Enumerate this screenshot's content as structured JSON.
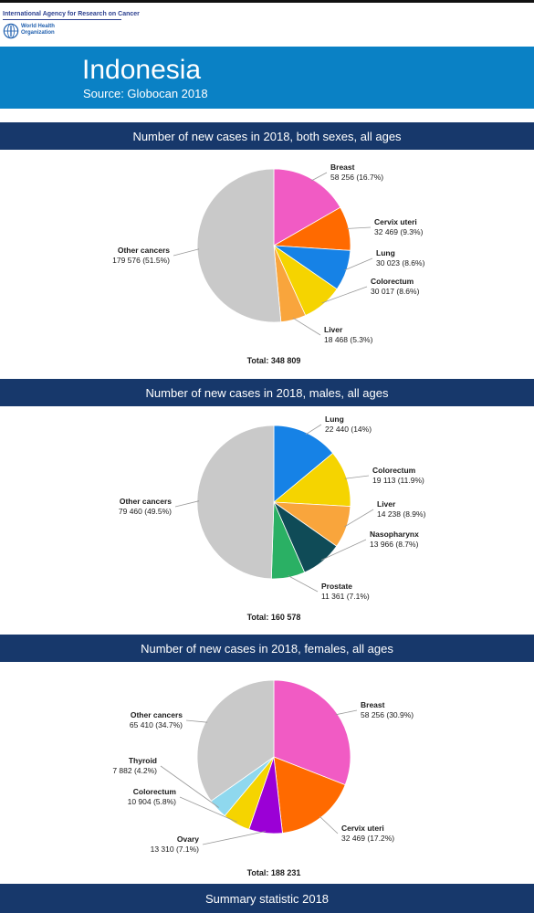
{
  "agency": "International Agency for Research on Cancer",
  "who": {
    "line1": "World Health",
    "line2": "Organization"
  },
  "banner": {
    "country": "Indonesia",
    "source": "Source: Globocan 2018"
  },
  "summary_header": "Summary statistic 2018",
  "colors": {
    "banner": "#0a81c5",
    "section_header": "#17386b"
  },
  "chart_data": [
    {
      "type": "pie",
      "title": "Number of new cases in 2018, both sexes, all ages",
      "total_label": "Total: 348 809",
      "slices": [
        {
          "name": "Breast",
          "value": 58256,
          "value_label": "58 256 (16.7%)",
          "color": "#f15bc4"
        },
        {
          "name": "Cervix uteri",
          "value": 32469,
          "value_label": "32 469 (9.3%)",
          "color": "#ff6a00"
        },
        {
          "name": "Lung",
          "value": 30023,
          "value_label": "30 023 (8.6%)",
          "color": "#1682e6"
        },
        {
          "name": "Colorectum",
          "value": 30017,
          "value_label": "30 017 (8.6%)",
          "color": "#f5d400"
        },
        {
          "name": "Liver",
          "value": 18468,
          "value_label": "18 468 (5.3%)",
          "color": "#f9a53c"
        },
        {
          "name": "Other cancers",
          "value": 179576,
          "value_label": "179 576 (51.5%)",
          "color": "#c9c9c9"
        }
      ]
    },
    {
      "type": "pie",
      "title": "Number of new cases in 2018, males, all ages",
      "total_label": "Total: 160 578",
      "slices": [
        {
          "name": "Lung",
          "value": 22440,
          "value_label": "22 440 (14%)",
          "color": "#1682e6"
        },
        {
          "name": "Colorectum",
          "value": 19113,
          "value_label": "19 113 (11.9%)",
          "color": "#f5d400"
        },
        {
          "name": "Liver",
          "value": 14238,
          "value_label": "14 238 (8.9%)",
          "color": "#f9a53c"
        },
        {
          "name": "Nasopharynx",
          "value": 13966,
          "value_label": "13 966 (8.7%)",
          "color": "#0f4b57"
        },
        {
          "name": "Prostate",
          "value": 11361,
          "value_label": "11 361 (7.1%)",
          "color": "#2ab064"
        },
        {
          "name": "Other cancers",
          "value": 79460,
          "value_label": "79 460 (49.5%)",
          "color": "#c9c9c9"
        }
      ]
    },
    {
      "type": "pie",
      "title": "Number of new cases in 2018, females, all ages",
      "total_label": "Total: 188 231",
      "slices": [
        {
          "name": "Breast",
          "value": 58256,
          "value_label": "58 256 (30.9%)",
          "color": "#f15bc4"
        },
        {
          "name": "Cervix uteri",
          "value": 32469,
          "value_label": "32 469 (17.2%)",
          "color": "#ff6a00"
        },
        {
          "name": "Ovary",
          "value": 13310,
          "value_label": "13 310 (7.1%)",
          "color": "#9b00d6"
        },
        {
          "name": "Colorectum",
          "value": 10904,
          "value_label": "10 904 (5.8%)",
          "color": "#f5d400"
        },
        {
          "name": "Thyroid",
          "value": 7882,
          "value_label": "7 882 (4.2%)",
          "color": "#8fd8ee"
        },
        {
          "name": "Other cancers",
          "value": 65410,
          "value_label": "65 410 (34.7%)",
          "color": "#c9c9c9"
        }
      ]
    }
  ]
}
